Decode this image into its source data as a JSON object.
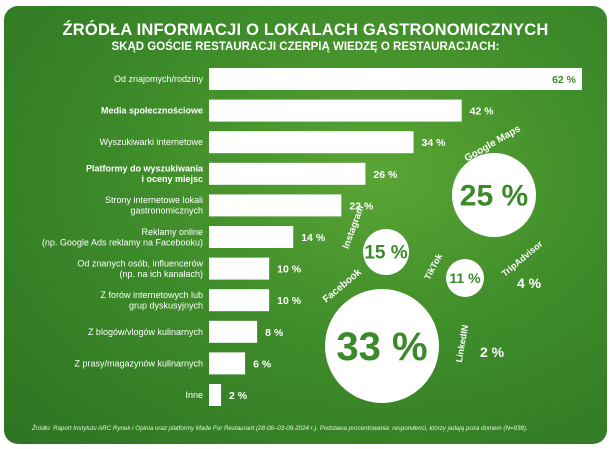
{
  "title": "ŹRÓDŁA INFORMACJI O LOKALACH GASTRONOMICZNYCH",
  "subtitle": "SKĄD GOŚCIE RESTAURACJI CZERPIĄ WIEDZĘ O RESTAURACJACH:",
  "source": "Źródło: Raport Instytutu ARC Rynek i Opinia oraz platformy Made For Restaurant (28-08–03-09-2024 r.). Podstawa procentowania: respondenci, którzy jadają poza domem (N=938).",
  "colors": {
    "background": "#3e8c2a",
    "bar": "#ffffff",
    "text": "#ffffff",
    "accent_text": "#3a8a2a"
  },
  "chart_data": [
    {
      "type": "bar",
      "orientation": "horizontal",
      "categories": [
        "Od znajomych/rodziny",
        "Media społecznościowe",
        "Wyszukiwarki internetowe",
        "Platformy do wyszukiwania i oceny miejsc",
        "Strony internetowe lokali gastronomicznych",
        "Reklamy online (np. Google Ads reklamy na Facebooku)",
        "Od znanych osób, influencerów (np. na ich kanałach)",
        "Z forów internetowych lub grup dyskusyjnych",
        "Z blogów/vlogów kulinarnych",
        "Z prasy/magazynów kulinarnych",
        "Inne"
      ],
      "category_lines": [
        [
          "Od znajomych/rodziny"
        ],
        [
          "Media społecznościowe"
        ],
        [
          "Wyszukiwarki internetowe"
        ],
        [
          "Platformy do wyszukiwania",
          "i oceny miejsc"
        ],
        [
          "Strony internetowe lokali",
          "gastronomicznych"
        ],
        [
          "Reklamy online",
          "(np. Google Ads reklamy na Facebooku)"
        ],
        [
          "Od znanych osób, influencerów",
          "(np. na ich kanałach)"
        ],
        [
          "Z forów internetowych lub",
          "grup dyskusyjnych"
        ],
        [
          "Z blogów/vlogów kulinarnych"
        ],
        [
          "Z prasy/magazynów kulinarnych"
        ],
        [
          "Inne"
        ]
      ],
      "bold_categories": [
        1,
        3
      ],
      "values": [
        62,
        42,
        34,
        26,
        22,
        14,
        10,
        10,
        8,
        6,
        2
      ],
      "value_labels": [
        "62 %",
        "42 %",
        "34 %",
        "26 %",
        "22 %",
        "14 %",
        "10 %",
        "10 %",
        "8 %",
        "6 %",
        "2 %"
      ],
      "unit": "%"
    },
    {
      "type": "bubble",
      "breakdown_of": "Platformy do wyszukiwania i oceny miejsc",
      "bubbles": [
        {
          "name": "Google Maps",
          "value": 25,
          "label": "25 %"
        },
        {
          "name": "Instagram",
          "value": 15,
          "label": "15 %"
        },
        {
          "name": "TikTok",
          "value": 11,
          "label": "11 %"
        },
        {
          "name": "TripAdvisor",
          "value": 4,
          "label": "4 %"
        },
        {
          "name": "Facebook",
          "value": 33,
          "label": "33 %"
        },
        {
          "name": "LinkedIN",
          "value": 2,
          "label": "2 %"
        }
      ]
    }
  ]
}
